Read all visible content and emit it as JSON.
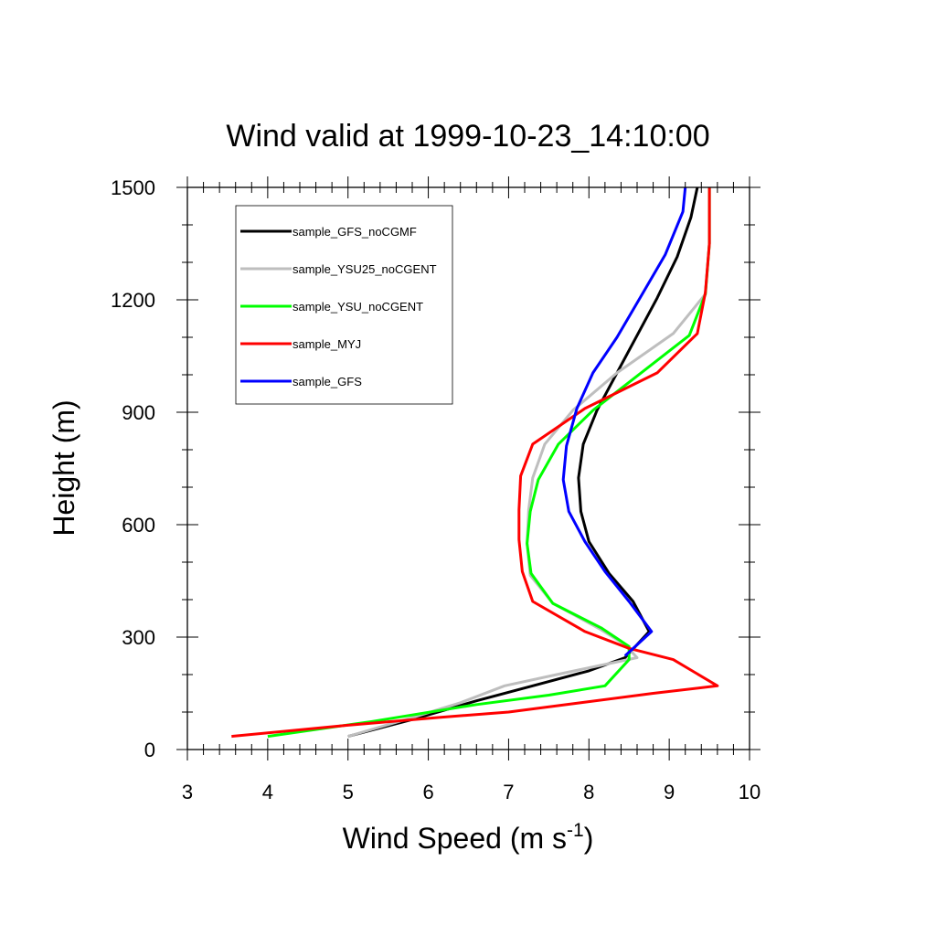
{
  "chart_data": {
    "type": "line",
    "title": "Wind valid at 1999-10-23_14:10:00",
    "xlabel": "Wind Speed (m s",
    "xlabel_superscript": "-1",
    "xlabel_suffix": ")",
    "ylabel": "Height (m)",
    "xlim": [
      3,
      10
    ],
    "ylim": [
      0,
      1500
    ],
    "xticks": [
      3,
      4,
      5,
      6,
      7,
      8,
      9,
      10
    ],
    "yticks": [
      0,
      300,
      600,
      900,
      1200,
      1500
    ],
    "legend_position": "top-left",
    "series": [
      {
        "name": "sample_GFS_noCGMF",
        "color": "#000000",
        "points": [
          [
            5.0,
            35
          ],
          [
            5.8,
            80
          ],
          [
            6.6,
            130
          ],
          [
            7.3,
            170
          ],
          [
            8.0,
            210
          ],
          [
            8.45,
            245
          ],
          [
            8.75,
            315
          ],
          [
            8.55,
            395
          ],
          [
            8.25,
            470
          ],
          [
            8.0,
            555
          ],
          [
            7.9,
            635
          ],
          [
            7.87,
            725
          ],
          [
            7.93,
            815
          ],
          [
            8.1,
            905
          ],
          [
            8.35,
            1005
          ],
          [
            8.6,
            1105
          ],
          [
            8.85,
            1205
          ],
          [
            9.1,
            1315
          ],
          [
            9.27,
            1420
          ],
          [
            9.35,
            1500
          ]
        ]
      },
      {
        "name": "sample_YSU25_noCGENT",
        "color": "#bebebe",
        "points": [
          [
            5.0,
            35
          ],
          [
            5.8,
            85
          ],
          [
            6.4,
            125
          ],
          [
            6.95,
            170
          ],
          [
            7.6,
            200
          ],
          [
            8.6,
            245
          ],
          [
            8.45,
            280
          ],
          [
            8.15,
            320
          ],
          [
            7.55,
            390
          ],
          [
            7.27,
            465
          ],
          [
            7.23,
            550
          ],
          [
            7.25,
            640
          ],
          [
            7.3,
            725
          ],
          [
            7.45,
            815
          ],
          [
            7.8,
            905
          ],
          [
            8.35,
            1005
          ],
          [
            9.05,
            1110
          ],
          [
            9.45,
            1215
          ],
          [
            9.5,
            1350
          ],
          [
            9.5,
            1500
          ]
        ]
      },
      {
        "name": "sample_YSU_noCGENT",
        "color": "#00ff00",
        "points": [
          [
            4.0,
            35
          ],
          [
            5.3,
            75
          ],
          [
            6.6,
            120
          ],
          [
            7.5,
            145
          ],
          [
            8.2,
            170
          ],
          [
            8.5,
            240
          ],
          [
            8.5,
            275
          ],
          [
            8.15,
            325
          ],
          [
            7.55,
            390
          ],
          [
            7.28,
            470
          ],
          [
            7.23,
            550
          ],
          [
            7.27,
            635
          ],
          [
            7.37,
            720
          ],
          [
            7.62,
            815
          ],
          [
            8.05,
            905
          ],
          [
            8.65,
            1005
          ],
          [
            9.25,
            1105
          ],
          [
            9.45,
            1215
          ],
          [
            9.5,
            1350
          ],
          [
            9.5,
            1500
          ]
        ]
      },
      {
        "name": "sample_MYJ",
        "color": "#ff0000",
        "points": [
          [
            3.55,
            35
          ],
          [
            5.0,
            65
          ],
          [
            6.1,
            85
          ],
          [
            7.0,
            100
          ],
          [
            7.9,
            125
          ],
          [
            8.8,
            150
          ],
          [
            9.6,
            170
          ],
          [
            9.05,
            240
          ],
          [
            8.5,
            270
          ],
          [
            7.95,
            315
          ],
          [
            7.3,
            395
          ],
          [
            7.17,
            475
          ],
          [
            7.13,
            560
          ],
          [
            7.13,
            640
          ],
          [
            7.15,
            730
          ],
          [
            7.3,
            815
          ],
          [
            7.95,
            910
          ],
          [
            8.85,
            1005
          ],
          [
            9.35,
            1110
          ],
          [
            9.45,
            1220
          ],
          [
            9.5,
            1350
          ],
          [
            9.5,
            1500
          ]
        ]
      },
      {
        "name": "sample_GFS",
        "color": "#0000ff",
        "points": [
          [
            8.45,
            250
          ],
          [
            8.78,
            315
          ],
          [
            8.5,
            395
          ],
          [
            8.2,
            475
          ],
          [
            7.95,
            555
          ],
          [
            7.75,
            635
          ],
          [
            7.68,
            720
          ],
          [
            7.72,
            810
          ],
          [
            7.85,
            910
          ],
          [
            8.05,
            1005
          ],
          [
            8.35,
            1100
          ],
          [
            8.65,
            1210
          ],
          [
            8.95,
            1320
          ],
          [
            9.17,
            1435
          ],
          [
            9.2,
            1500
          ]
        ]
      }
    ]
  }
}
